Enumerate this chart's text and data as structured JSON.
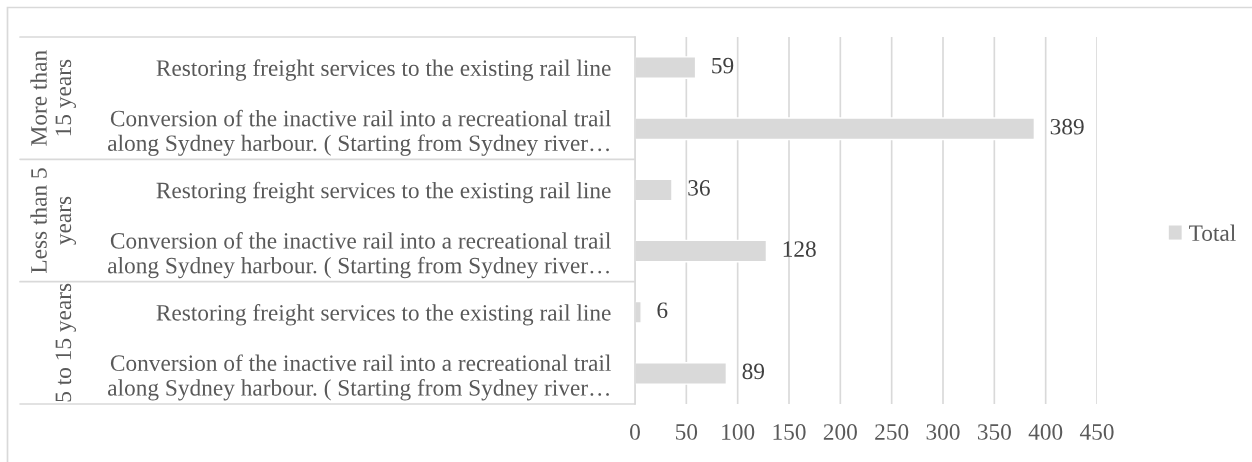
{
  "chart_data": {
    "type": "bar",
    "orientation": "horizontal",
    "categories": [
      "Restoring freight services to the existing rail line",
      "Conversion of the inactive rail into a recreational trail\nalong Sydney harbour. ( Starting from Sydney river…",
      "Restoring freight services to the existing rail line",
      "Conversion of the inactive rail into a recreational trail\nalong Sydney harbour. ( Starting from Sydney river…",
      "Restoring freight services to the existing rail line",
      "Conversion of the inactive rail into a recreational trail\nalong Sydney harbour. ( Starting from Sydney river…"
    ],
    "series": [
      {
        "name": "Total",
        "color": "#d9d9d9",
        "values": [
          59,
          389,
          36,
          128,
          6,
          89
        ]
      }
    ],
    "xlim": [
      0,
      450
    ],
    "xticks": [
      0,
      50,
      100,
      150,
      200,
      250,
      300,
      350,
      400,
      450
    ],
    "grid": "x",
    "legend": "right",
    "data_labels": true,
    "annotations": [
      "More than\n15 years",
      "Less than 5\nyears",
      "5 to 15 years"
    ]
  }
}
